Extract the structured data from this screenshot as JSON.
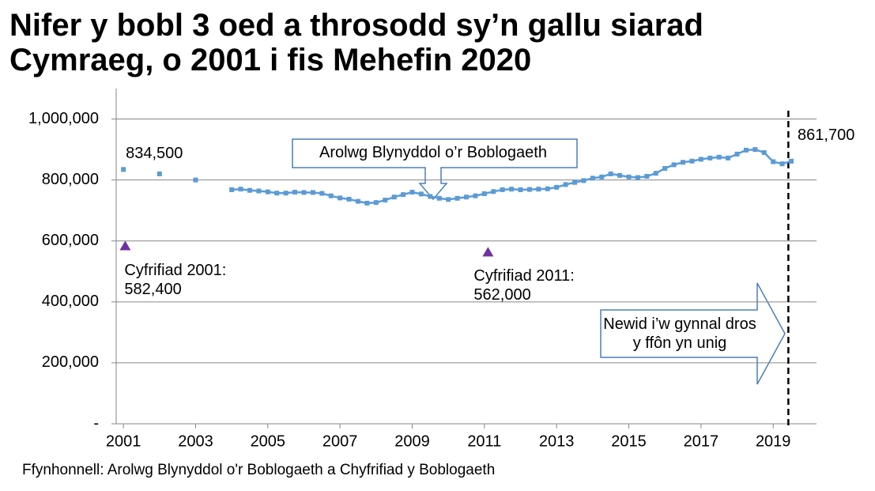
{
  "chart_data": {
    "type": "line",
    "title": "Nifer y bobl 3 oed a throsodd sy’n gallu siarad Cymraeg, o 2001 i fis Mehefin 2020",
    "source": "Ffynhonnell: Arolwg Blynyddol o'r Boblogaeth a Chyfrifiad y Boblogaeth",
    "xlim": [
      2000.8,
      2020.2
    ],
    "xticks": [
      2001,
      2003,
      2005,
      2007,
      2009,
      2011,
      2013,
      2015,
      2017,
      2019
    ],
    "ylim": [
      0,
      1100000
    ],
    "yticks": [
      {
        "value": 0,
        "label": "-"
      },
      {
        "value": 200000,
        "label": "200,000"
      },
      {
        "value": 400000,
        "label": "400,000"
      },
      {
        "value": 600000,
        "label": "600,000"
      },
      {
        "value": 800000,
        "label": "800,000"
      },
      {
        "value": 1000000,
        "label": "1,000,000"
      }
    ],
    "grid": true,
    "reference_line_x": 2019.42,
    "annotations": [
      "Arolwg Blynyddol o’r Boblogaeth",
      "Newid i’w gynnal dros y ffôn yn unig"
    ],
    "series": [
      {
        "color": "#5b9bd5",
        "marker": "square",
        "line": false,
        "x": [
          2001,
          2002,
          2003
        ],
        "values": [
          834500,
          820000,
          800000
        ],
        "value_labels": [
          "834,500",
          null,
          null
        ]
      },
      {
        "color": "#5b9bd5",
        "marker": "square",
        "line": true,
        "x": [
          2004,
          2004.25,
          2004.5,
          2004.75,
          2005,
          2005.25,
          2005.5,
          2005.75,
          2006,
          2006.25,
          2006.5,
          2006.75,
          2007,
          2007.25,
          2007.5,
          2007.75,
          2008,
          2008.25,
          2008.5,
          2008.75,
          2009,
          2009.25,
          2009.5,
          2009.75,
          2010,
          2010.25,
          2010.5,
          2010.75,
          2011,
          2011.25,
          2011.5,
          2011.75,
          2012,
          2012.25,
          2012.5,
          2012.75,
          2013,
          2013.25,
          2013.5,
          2013.75,
          2014,
          2014.25,
          2014.5,
          2014.75,
          2015,
          2015.25,
          2015.5,
          2015.75,
          2016,
          2016.25,
          2016.5,
          2016.75,
          2017,
          2017.25,
          2017.5,
          2017.75,
          2018,
          2018.25,
          2018.5,
          2018.75,
          2019,
          2019.25,
          2019.5
        ],
        "values": [
          768000,
          770000,
          766000,
          764000,
          761000,
          757000,
          757000,
          760000,
          759000,
          759000,
          756000,
          748000,
          741000,
          737000,
          730000,
          724000,
          726000,
          734000,
          744000,
          752000,
          760000,
          754000,
          746000,
          740000,
          736000,
          740000,
          744000,
          748000,
          755000,
          762000,
          768000,
          770000,
          768000,
          769000,
          770000,
          771000,
          776000,
          785000,
          792000,
          798000,
          806000,
          810000,
          820000,
          815000,
          810000,
          808000,
          812000,
          822000,
          838000,
          850000,
          858000,
          862000,
          868000,
          872000,
          875000,
          872000,
          885000,
          898000,
          900000,
          890000,
          860000,
          853000,
          861700
        ],
        "value_labels": [
          null,
          null,
          null,
          null,
          null,
          null,
          null,
          null,
          null,
          null,
          null,
          null,
          null,
          null,
          null,
          null,
          null,
          null,
          null,
          null,
          null,
          null,
          null,
          null,
          null,
          null,
          null,
          null,
          null,
          null,
          null,
          null,
          null,
          null,
          null,
          null,
          null,
          null,
          null,
          null,
          null,
          null,
          null,
          null,
          null,
          null,
          null,
          null,
          null,
          null,
          null,
          null,
          null,
          null,
          null,
          null,
          null,
          null,
          null,
          null,
          null,
          null,
          "861,700"
        ]
      },
      {
        "color": "#7030a0",
        "marker": "triangle",
        "line": false,
        "x": [
          2001.05,
          2011.1
        ],
        "values": [
          582400,
          562000
        ],
        "value_labels": [
          "Cyfrifiad 2001: 582,400",
          "Cyfrifiad 2011: 562,000"
        ]
      }
    ]
  }
}
